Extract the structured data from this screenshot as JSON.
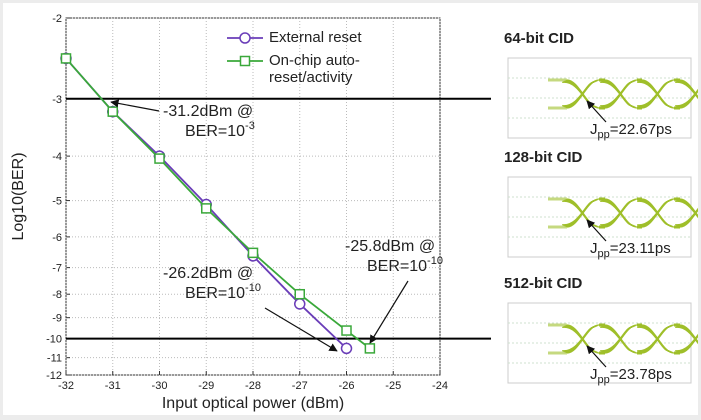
{
  "chart_data": {
    "type": "line",
    "xlabel": "Input optical power (dBm)",
    "ylabel": "Log10(BER)",
    "xlim": [
      -32,
      -24
    ],
    "xticks": [
      -32,
      -31,
      -30,
      -29,
      -28,
      -27,
      -26,
      -25,
      -24
    ],
    "ylim": [
      -12,
      -2
    ],
    "yticks": [
      -2,
      -3,
      -4,
      -5,
      -6,
      -7,
      -8,
      -9,
      -10,
      -11,
      -12
    ],
    "yscale": "log-negative",
    "grid": true,
    "legend": "top",
    "series": [
      {
        "name": "External reset",
        "color": "#6a3db8",
        "marker": "circle",
        "x": [
          -32,
          -31,
          -30,
          -29,
          -28,
          -27,
          -26
        ],
        "values": [
          -2.45,
          -3.2,
          -4.0,
          -5.1,
          -6.6,
          -8.4,
          -10.5
        ]
      },
      {
        "name": "On-chip auto-reset/activity",
        "color": "#3aa83a",
        "marker": "square",
        "x": [
          -32,
          -31,
          -30,
          -29,
          -28,
          -27,
          -26,
          -25.5
        ],
        "values": [
          -2.45,
          -3.2,
          -4.05,
          -5.2,
          -6.5,
          -8.0,
          -9.6,
          -10.5
        ]
      }
    ],
    "hlines": [
      -3,
      -10
    ],
    "annotations": [
      {
        "line1": "-31.2dBm @",
        "line2": "BER=10",
        "sup": "-3"
      },
      {
        "line1": "-26.2dBm @",
        "line2": "BER=10",
        "sup": "-10"
      },
      {
        "line1": "-25.8dBm @",
        "line2": "BER=10",
        "sup": "-10"
      }
    ]
  },
  "eye_panels": [
    {
      "title": "64-bit CID",
      "jitter": "J",
      "sub": "pp",
      "value": "=22.67ps"
    },
    {
      "title": "128-bit CID",
      "jitter": "J",
      "sub": "pp",
      "value": "=23.11ps"
    },
    {
      "title": "512-bit CID",
      "jitter": "J",
      "sub": "pp",
      "value": "=23.78ps"
    }
  ]
}
